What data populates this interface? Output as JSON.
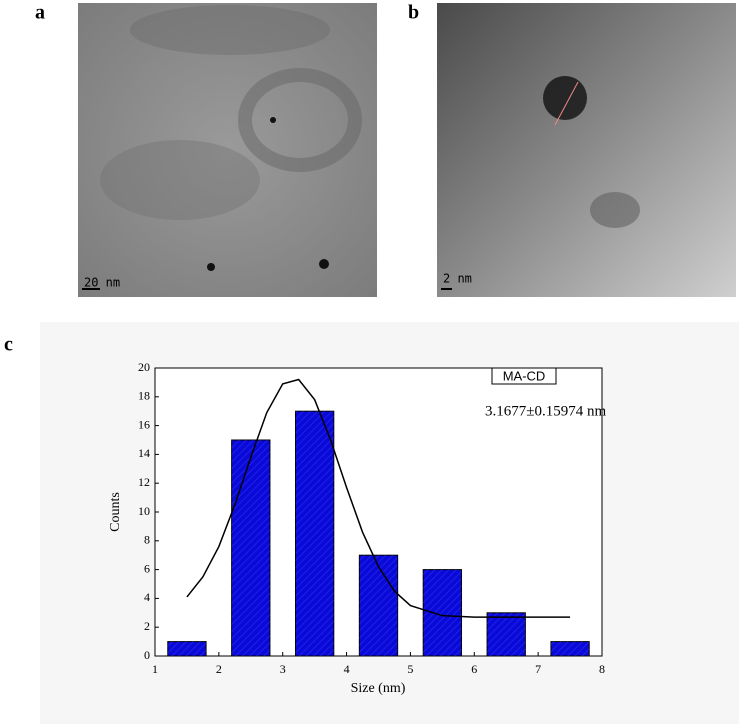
{
  "panels": {
    "a": "a",
    "b": "b",
    "c": "c"
  },
  "images": [
    {
      "scale_bar": "20 nm"
    },
    {
      "scale_bar": "2 nm"
    }
  ],
  "chart_data": {
    "type": "bar",
    "x": [
      1.5,
      2.5,
      3.5,
      4.5,
      5.5,
      6.5,
      7.5
    ],
    "values": [
      1,
      15,
      17,
      7,
      6,
      3,
      1
    ],
    "color": "#0a0ad8",
    "xlabel": "Size (nm)",
    "ylabel": "Counts",
    "legend": "MA-CD",
    "annotation": "3.1677±0.15974 nm",
    "xlim": [
      1,
      8
    ],
    "xticks": [
      1,
      2,
      3,
      4,
      5,
      6,
      7,
      8
    ],
    "ylim": [
      0,
      20
    ],
    "yticks": [
      0,
      2,
      4,
      6,
      8,
      10,
      12,
      14,
      16,
      18,
      20
    ],
    "curve": {
      "color": "#000000",
      "x": [
        1.5,
        1.75,
        2.0,
        2.25,
        2.5,
        2.75,
        3.0,
        3.25,
        3.5,
        3.75,
        4.0,
        4.25,
        4.5,
        4.75,
        5.0,
        5.5,
        6.0,
        6.5,
        7.0,
        7.5
      ],
      "values": [
        4.1,
        5.5,
        7.6,
        10.5,
        13.8,
        16.9,
        18.9,
        19.2,
        17.8,
        15.0,
        11.7,
        8.6,
        6.2,
        4.5,
        3.5,
        2.8,
        2.7,
        2.7,
        2.7,
        2.7
      ]
    }
  }
}
